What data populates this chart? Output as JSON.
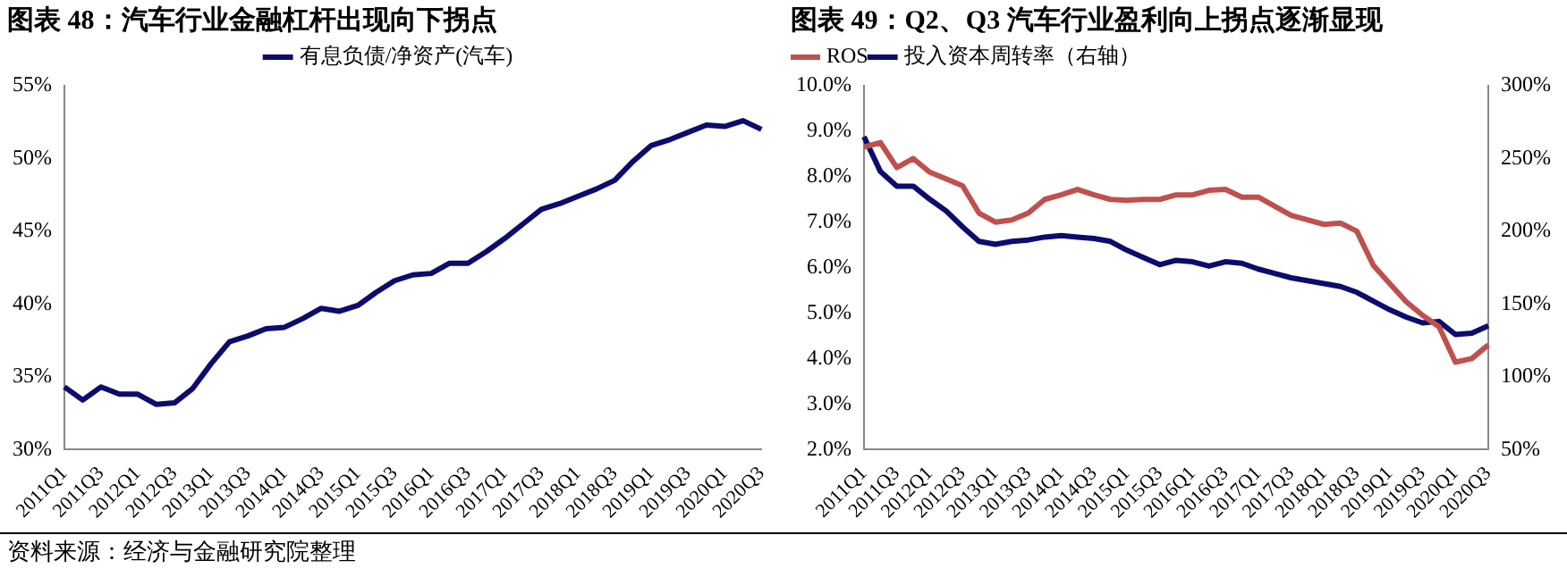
{
  "chart_data": [
    {
      "type": "line",
      "title": "图表 48：汽车行业金融杠杆出现向下拐点",
      "categories": [
        "2011Q1",
        null,
        "2011Q3",
        null,
        "2012Q1",
        null,
        "2012Q3",
        null,
        "2013Q1",
        null,
        "2013Q3",
        null,
        "2014Q1",
        null,
        "2014Q3",
        null,
        "2015Q1",
        null,
        "2015Q3",
        null,
        "2016Q1",
        null,
        "2016Q3",
        null,
        "2017Q1",
        null,
        "2017Q3",
        null,
        "2018Q1",
        null,
        "2018Q3",
        null,
        "2019Q1",
        null,
        "2019Q3",
        null,
        "2020Q1",
        null,
        "2020Q3"
      ],
      "series": [
        {
          "name": "有息负债/净资产(汽车)",
          "color": "#0c0c6e",
          "values": [
            34.3,
            33.4,
            34.3,
            33.8,
            33.8,
            33.1,
            33.2,
            34.2,
            35.9,
            37.4,
            37.8,
            38.3,
            38.4,
            39.0,
            39.7,
            39.5,
            39.9,
            40.8,
            41.6,
            42.0,
            42.1,
            42.8,
            42.8,
            43.6,
            44.5,
            45.5,
            46.5,
            46.9,
            47.4,
            47.9,
            48.5,
            49.8,
            50.9,
            51.3,
            51.8,
            52.3,
            52.2,
            52.6,
            52.0
          ]
        }
      ],
      "ylim": [
        30,
        55
      ],
      "yticks": [
        {
          "value": 30,
          "label": "30%"
        },
        {
          "value": 35,
          "label": "35%"
        },
        {
          "value": 40,
          "label": "40%"
        },
        {
          "value": 45,
          "label": "45%"
        },
        {
          "value": 50,
          "label": "50%"
        },
        {
          "value": 55,
          "label": "55%"
        }
      ],
      "legend": "top",
      "grid": false,
      "marker": "none",
      "annotations": [
        "资料来源：经济与金融研究院整理"
      ]
    },
    {
      "type": "line",
      "title": "图表 49：Q2、Q3 汽车行业盈利向上拐点逐渐显现",
      "categories": [
        "2011Q1",
        null,
        "2011Q3",
        null,
        "2012Q1",
        null,
        "2012Q3",
        null,
        "2013Q1",
        null,
        "2013Q3",
        null,
        "2014Q1",
        null,
        "2014Q3",
        null,
        "2015Q1",
        null,
        "2015Q3",
        null,
        "2016Q1",
        null,
        "2016Q3",
        null,
        "2017Q1",
        null,
        "2017Q3",
        null,
        "2018Q1",
        null,
        "2018Q3",
        null,
        "2019Q1",
        null,
        "2019Q3",
        null,
        "2020Q1",
        null,
        "2020Q3"
      ],
      "series": [
        {
          "name": "ROS",
          "color": "#c0504d",
          "values": [
            8.65,
            8.75,
            8.2,
            8.4,
            8.1,
            7.95,
            7.8,
            7.2,
            7.0,
            7.05,
            7.2,
            7.5,
            7.6,
            7.72,
            7.6,
            7.5,
            7.48,
            7.5,
            7.5,
            7.6,
            7.6,
            7.7,
            7.72,
            7.55,
            7.55,
            7.35,
            7.15,
            7.05,
            6.95,
            6.98,
            6.8,
            6.05,
            5.65,
            5.25,
            4.95,
            4.7,
            3.92,
            4.0,
            4.3
          ]
        },
        {
          "name": "投入资本周转率（右轴）",
          "color": "#0c0c6e",
          "axis": "y2",
          "values": [
            265,
            241,
            231,
            231,
            222,
            214,
            203,
            193,
            191,
            193,
            194,
            196,
            197,
            196,
            195,
            193,
            187,
            182,
            177,
            180,
            179,
            176,
            179,
            178,
            174,
            171,
            168,
            166,
            164,
            162,
            158,
            152,
            146,
            141,
            137,
            138,
            129,
            130,
            135
          ]
        }
      ],
      "ylim": [
        2,
        10
      ],
      "yticks": [
        {
          "value": 2,
          "label": "2.0%"
        },
        {
          "value": 3,
          "label": "3.0%"
        },
        {
          "value": 4,
          "label": "4.0%"
        },
        {
          "value": 5,
          "label": "5.0%"
        },
        {
          "value": 6,
          "label": "6.0%"
        },
        {
          "value": 7,
          "label": "7.0%"
        },
        {
          "value": 8,
          "label": "8.0%"
        },
        {
          "value": 9,
          "label": "9.0%"
        },
        {
          "value": 10,
          "label": "10.0%"
        }
      ],
      "y2lim": [
        50,
        300
      ],
      "y2ticks": [
        {
          "value": 50,
          "label": "50%"
        },
        {
          "value": 100,
          "label": "100%"
        },
        {
          "value": 150,
          "label": "150%"
        },
        {
          "value": 200,
          "label": "200%"
        },
        {
          "value": 250,
          "label": "250%"
        },
        {
          "value": 300,
          "label": "300%"
        }
      ],
      "legend": "top left",
      "grid": false,
      "marker": "none"
    }
  ]
}
